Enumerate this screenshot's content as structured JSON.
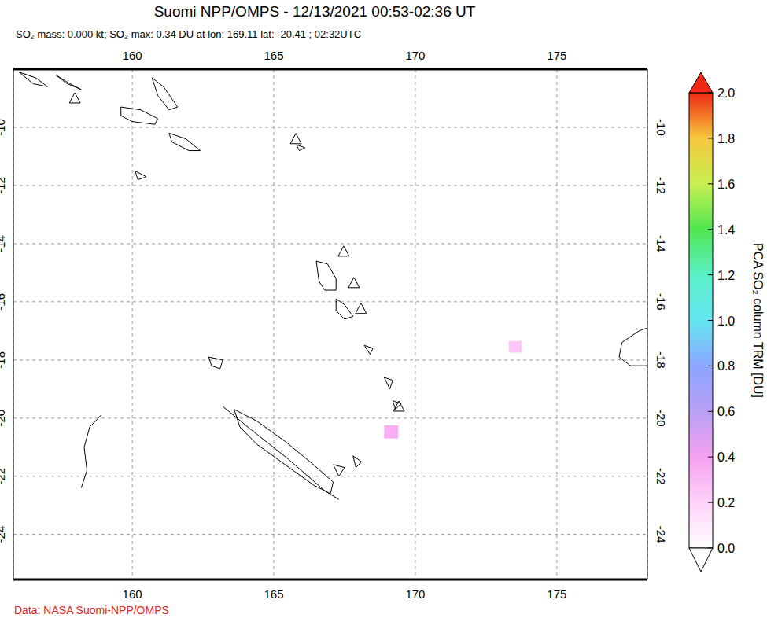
{
  "chart_data": {
    "type": "map",
    "title": "Suomi NPP/OMPS - 12/13/2021 00:53-02:36 UT",
    "subtitle": "SO₂ mass: 0.000 kt; SO₂ max: 0.34 DU at lon: 169.11 lat: -20.41 ; 02:32UTC",
    "source": "Data: NASA Suomi-NPP/OMPS",
    "xlim": [
      155.8,
      178.2
    ],
    "ylim": [
      -25.55,
      -8
    ],
    "xticks": [
      160,
      165,
      170,
      175
    ],
    "yticks": [
      -10,
      -12,
      -14,
      -16,
      -18,
      -20,
      -22,
      -24
    ],
    "grid": true,
    "coastlines": [
      [
        [
          156.0,
          -8.1
        ],
        [
          156.6,
          -8.3
        ],
        [
          157.0,
          -8.6
        ],
        [
          156.5,
          -8.5
        ],
        [
          156.0,
          -8.1
        ]
      ],
      [
        [
          157.3,
          -8.2
        ],
        [
          157.8,
          -8.5
        ],
        [
          158.2,
          -8.7
        ],
        [
          157.7,
          -8.5
        ],
        [
          157.3,
          -8.2
        ]
      ],
      [
        [
          160.7,
          -8.3
        ],
        [
          161.1,
          -8.6
        ],
        [
          161.6,
          -9.3
        ],
        [
          161.3,
          -9.4
        ],
        [
          160.9,
          -8.9
        ],
        [
          160.7,
          -8.3
        ]
      ],
      [
        [
          159.6,
          -9.3
        ],
        [
          160.3,
          -9.4
        ],
        [
          160.9,
          -9.7
        ],
        [
          160.8,
          -9.9
        ],
        [
          160.0,
          -9.8
        ],
        [
          159.6,
          -9.6
        ],
        [
          159.6,
          -9.3
        ]
      ],
      [
        [
          161.3,
          -10.2
        ],
        [
          161.9,
          -10.4
        ],
        [
          162.4,
          -10.8
        ],
        [
          162.0,
          -10.8
        ],
        [
          161.4,
          -10.5
        ],
        [
          161.3,
          -10.2
        ]
      ],
      [
        [
          160.1,
          -11.5
        ],
        [
          160.5,
          -11.7
        ],
        [
          160.2,
          -11.8
        ],
        [
          160.1,
          -11.5
        ]
      ],
      [
        [
          165.8,
          -10.6
        ],
        [
          166.1,
          -10.7
        ],
        [
          165.9,
          -10.8
        ],
        [
          165.8,
          -10.6
        ]
      ],
      [
        [
          166.5,
          -14.6
        ],
        [
          166.9,
          -14.7
        ],
        [
          167.2,
          -15.2
        ],
        [
          167.2,
          -15.6
        ],
        [
          166.8,
          -15.6
        ],
        [
          166.6,
          -15.3
        ],
        [
          166.5,
          -14.6
        ]
      ],
      [
        [
          167.2,
          -15.9
        ],
        [
          167.5,
          -16.1
        ],
        [
          167.8,
          -16.5
        ],
        [
          167.5,
          -16.6
        ],
        [
          167.2,
          -16.3
        ],
        [
          167.2,
          -15.9
        ]
      ],
      [
        [
          168.2,
          -17.5
        ],
        [
          168.5,
          -17.6
        ],
        [
          168.4,
          -17.8
        ],
        [
          168.2,
          -17.5
        ]
      ],
      [
        [
          168.9,
          -18.6
        ],
        [
          169.2,
          -18.7
        ],
        [
          169.1,
          -19.0
        ],
        [
          168.9,
          -18.6
        ]
      ],
      [
        [
          169.2,
          -19.4
        ],
        [
          169.5,
          -19.5
        ],
        [
          169.3,
          -19.7
        ],
        [
          169.2,
          -19.4
        ]
      ],
      [
        [
          163.6,
          -19.7
        ],
        [
          164.4,
          -20.1
        ],
        [
          165.4,
          -20.8
        ],
        [
          166.4,
          -21.6
        ],
        [
          167.1,
          -22.2
        ],
        [
          167.0,
          -22.6
        ],
        [
          166.4,
          -22.3
        ],
        [
          165.4,
          -21.6
        ],
        [
          164.4,
          -20.9
        ],
        [
          163.8,
          -20.3
        ],
        [
          163.6,
          -19.7
        ]
      ],
      [
        [
          163.2,
          -19.6
        ],
        [
          164.2,
          -20.4
        ],
        [
          165.5,
          -21.4
        ],
        [
          166.8,
          -22.5
        ],
        [
          167.3,
          -22.8
        ]
      ],
      [
        [
          167.1,
          -21.6
        ],
        [
          167.5,
          -21.7
        ],
        [
          167.3,
          -22.0
        ],
        [
          167.1,
          -21.6
        ]
      ],
      [
        [
          167.8,
          -21.3
        ],
        [
          168.1,
          -21.5
        ],
        [
          167.9,
          -21.7
        ],
        [
          167.8,
          -21.3
        ]
      ],
      [
        [
          162.7,
          -17.9
        ],
        [
          163.2,
          -18.0
        ],
        [
          163.1,
          -18.3
        ],
        [
          162.8,
          -18.2
        ],
        [
          162.7,
          -17.9
        ]
      ],
      [
        [
          158.9,
          -19.9
        ],
        [
          158.5,
          -20.3
        ],
        [
          158.3,
          -21.0
        ],
        [
          158.4,
          -21.8
        ],
        [
          158.2,
          -22.4
        ]
      ],
      [
        [
          177.3,
          -17.4
        ],
        [
          177.9,
          -17.0
        ],
        [
          178.2,
          -16.9
        ],
        [
          178.2,
          -18.2
        ],
        [
          177.6,
          -18.2
        ],
        [
          177.2,
          -17.9
        ],
        [
          177.3,
          -17.4
        ]
      ]
    ],
    "volcanoes": {
      "marker": "triangle",
      "points": [
        [
          157.97,
          -9.0
        ],
        [
          165.78,
          -10.4
        ],
        [
          167.47,
          -14.27
        ],
        [
          167.83,
          -15.35
        ],
        [
          168.08,
          -16.24
        ],
        [
          169.42,
          -19.6
        ]
      ]
    },
    "so2_pixels": [
      {
        "lon": [
          168.9,
          169.4
        ],
        "lat": [
          -20.7,
          -20.25
        ],
        "value": 0.34
      },
      {
        "lon": [
          173.3,
          173.75
        ],
        "lat": [
          -17.75,
          -17.35
        ],
        "value": 0.25
      }
    ],
    "colorbar": {
      "label": "PCA SO₂ column TRM [DU]",
      "range": [
        0,
        2
      ],
      "ticks": [
        {
          "value": 0,
          "label": "0.0"
        },
        {
          "value": 0.2,
          "label": "0.2"
        },
        {
          "value": 0.4,
          "label": "0.4"
        },
        {
          "value": 0.6,
          "label": "0.6"
        },
        {
          "value": 0.8,
          "label": "0.8"
        },
        {
          "value": 1,
          "label": "1.0"
        },
        {
          "value": 1.2,
          "label": "1.2"
        },
        {
          "value": 1.4,
          "label": "1.4"
        },
        {
          "value": 1.6,
          "label": "1.6"
        },
        {
          "value": 1.8,
          "label": "1.8"
        },
        {
          "value": 2,
          "label": "2.0"
        }
      ],
      "colors": [
        "#ffffff",
        "#ffd2fa",
        "#f5a0f0",
        "#b9a0f5",
        "#8ca5ff",
        "#64e6f0",
        "#5af0c8",
        "#50e650",
        "#c8f050",
        "#f5c83c",
        "#f02814"
      ]
    }
  }
}
